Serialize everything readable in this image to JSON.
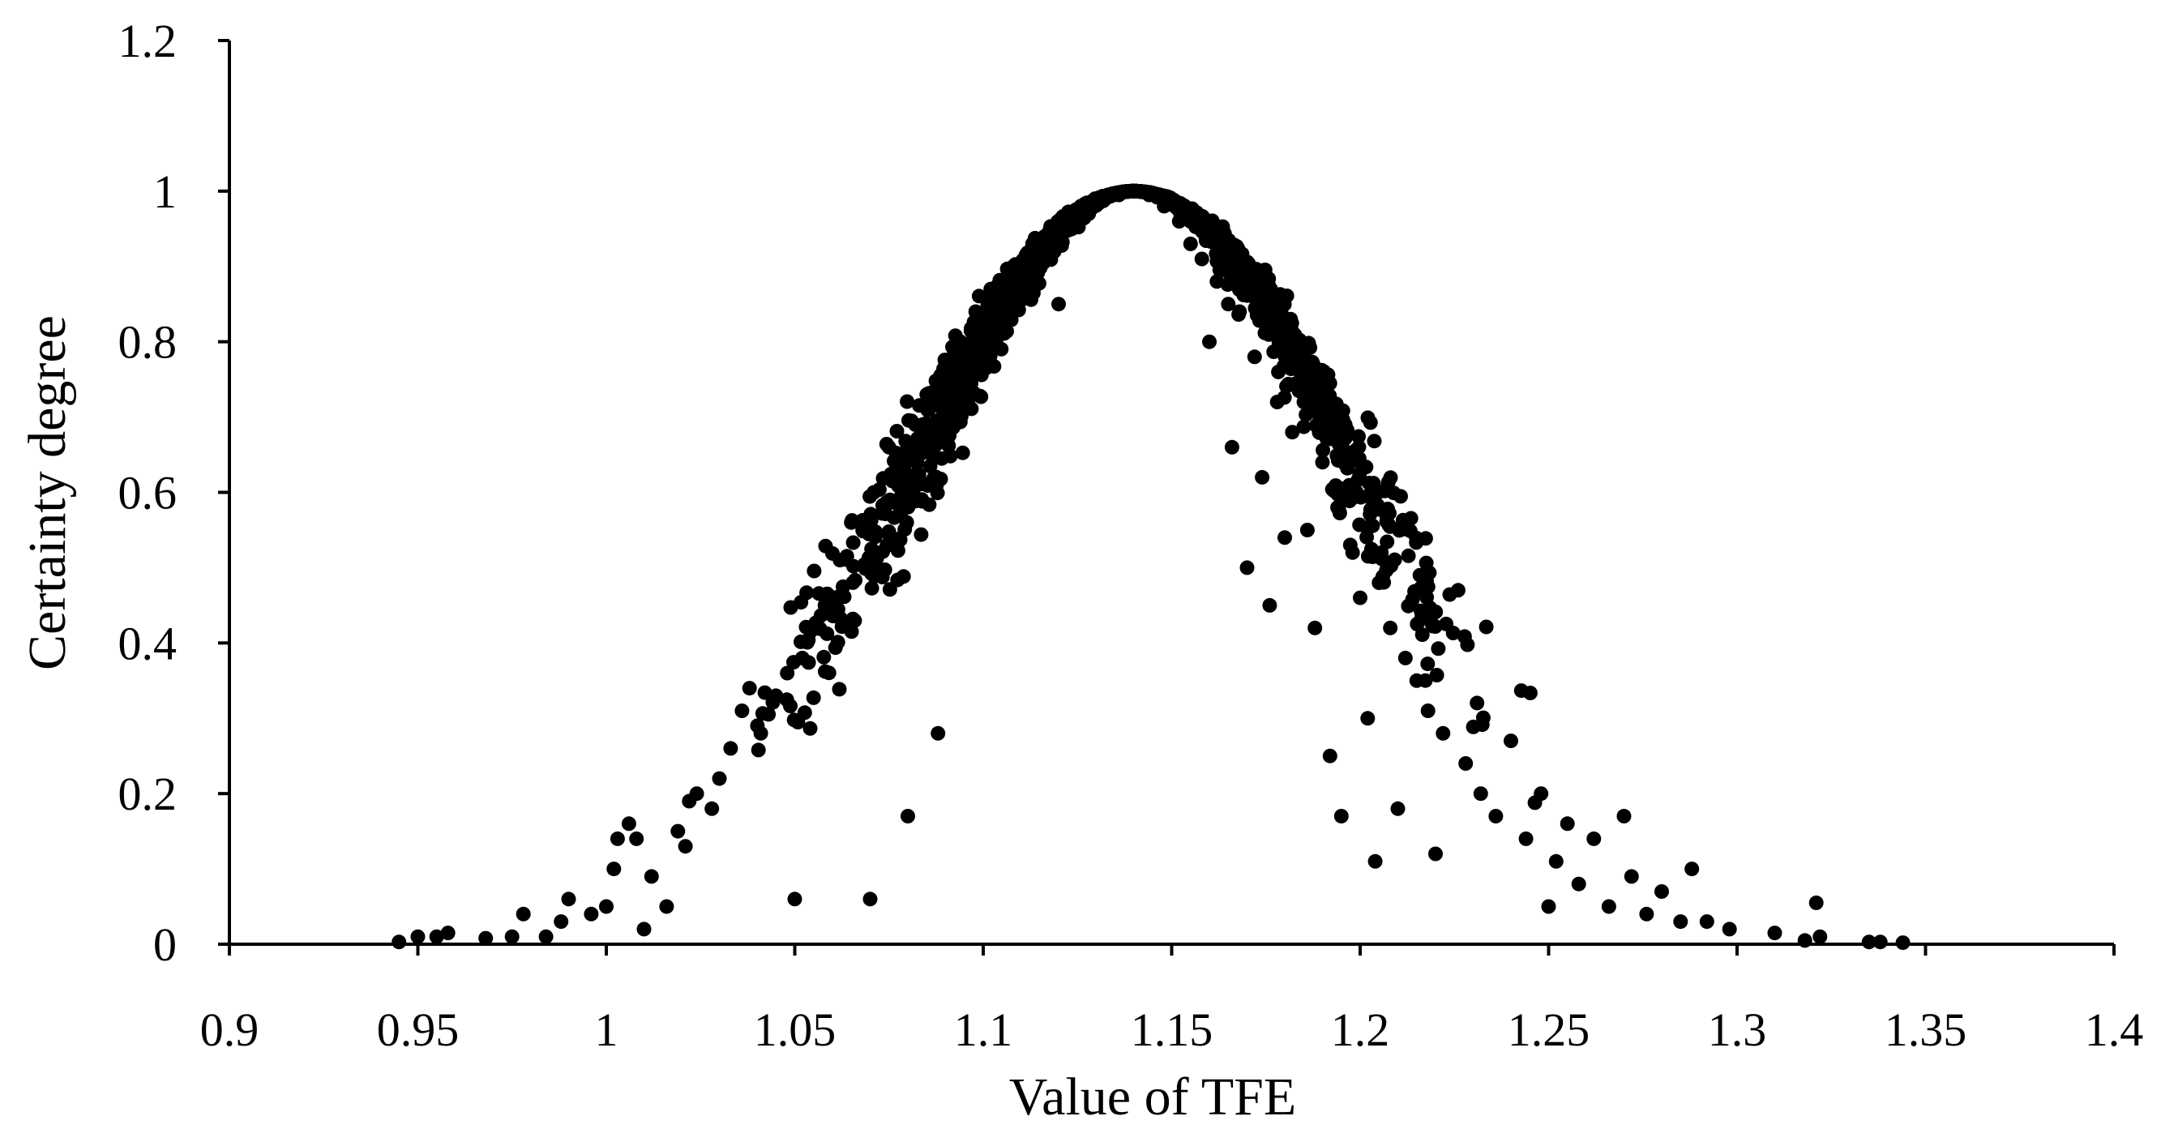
{
  "chart_data": {
    "type": "scatter",
    "title": "",
    "xlabel": "Value of TFE",
    "ylabel": "Certainty degree",
    "xlim": [
      0.9,
      1.4
    ],
    "ylim": [
      0,
      1.2
    ],
    "x_ticks": [
      0.9,
      0.95,
      1,
      1.05,
      1.1,
      1.15,
      1.2,
      1.25,
      1.3,
      1.35,
      1.4
    ],
    "x_tick_labels": [
      "0.9",
      "0.95",
      "1",
      "1.05",
      "1.1",
      "1.15",
      "1.2",
      "1.25",
      "1.3",
      "1.35",
      "1.4"
    ],
    "y_ticks": [
      0,
      0.2,
      0.4,
      0.6,
      0.8,
      1,
      1.2
    ],
    "y_tick_labels": [
      "0",
      "0.2",
      "0.4",
      "0.6",
      "0.8",
      "1",
      "1.2"
    ],
    "grid": false,
    "legend": "none",
    "marker_color": "#000000",
    "series": [
      {
        "points": [
          [
            0.945,
            0.003
          ],
          [
            0.95,
            0.01
          ],
          [
            0.955,
            0.01
          ],
          [
            0.958,
            0.015
          ],
          [
            0.968,
            0.008
          ],
          [
            0.975,
            0.01
          ],
          [
            0.978,
            0.04
          ],
          [
            0.984,
            0.01
          ],
          [
            0.988,
            0.03
          ],
          [
            0.99,
            0.06
          ],
          [
            0.996,
            0.04
          ],
          [
            1.0,
            0.05
          ],
          [
            1.002,
            0.1
          ],
          [
            1.003,
            0.14
          ],
          [
            1.006,
            0.16
          ],
          [
            1.008,
            0.14
          ],
          [
            1.01,
            0.02
          ],
          [
            1.012,
            0.09
          ],
          [
            1.016,
            0.05
          ],
          [
            1.019,
            0.15
          ],
          [
            1.021,
            0.13
          ],
          [
            1.022,
            0.19
          ],
          [
            1.024,
            0.2
          ],
          [
            1.028,
            0.18
          ],
          [
            1.03,
            0.22
          ],
          [
            1.033,
            0.26
          ],
          [
            1.036,
            0.31
          ],
          [
            1.038,
            0.34
          ],
          [
            1.041,
            0.28
          ],
          [
            1.045,
            0.33
          ],
          [
            1.048,
            0.36
          ],
          [
            1.05,
            0.06
          ],
          [
            1.052,
            0.38
          ],
          [
            1.055,
            0.42
          ],
          [
            1.058,
            0.45
          ],
          [
            1.06,
            0.46
          ],
          [
            1.062,
            0.51
          ],
          [
            1.065,
            0.56
          ],
          [
            1.068,
            0.55
          ],
          [
            1.07,
            0.06
          ],
          [
            1.071,
            0.6
          ],
          [
            1.075,
            0.66
          ],
          [
            1.078,
            0.62
          ],
          [
            1.08,
            0.17
          ],
          [
            1.082,
            0.69
          ],
          [
            1.085,
            0.73
          ],
          [
            1.088,
            0.28
          ],
          [
            1.09,
            0.77
          ],
          [
            1.094,
            0.8
          ],
          [
            1.098,
            0.84
          ],
          [
            1.102,
            0.87
          ],
          [
            1.104,
            0.82
          ],
          [
            1.108,
            0.9
          ],
          [
            1.112,
            0.88
          ],
          [
            1.115,
            0.92
          ],
          [
            1.118,
            0.94
          ],
          [
            1.12,
            0.85
          ],
          [
            1.124,
            0.96
          ],
          [
            1.128,
            0.97
          ],
          [
            1.132,
            0.99
          ],
          [
            1.136,
            0.995
          ],
          [
            1.14,
            1.0
          ],
          [
            1.144,
            0.995
          ],
          [
            1.148,
            0.98
          ],
          [
            1.152,
            0.96
          ],
          [
            1.155,
            0.93
          ],
          [
            1.158,
            0.91
          ],
          [
            1.16,
            0.8
          ],
          [
            1.162,
            0.88
          ],
          [
            1.165,
            0.85
          ],
          [
            1.166,
            0.66
          ],
          [
            1.168,
            0.84
          ],
          [
            1.17,
            0.5
          ],
          [
            1.172,
            0.78
          ],
          [
            1.174,
            0.62
          ],
          [
            1.176,
            0.45
          ],
          [
            1.178,
            0.72
          ],
          [
            1.18,
            0.54
          ],
          [
            1.182,
            0.68
          ],
          [
            1.184,
            0.76
          ],
          [
            1.186,
            0.55
          ],
          [
            1.188,
            0.42
          ],
          [
            1.19,
            0.64
          ],
          [
            1.192,
            0.25
          ],
          [
            1.194,
            0.58
          ],
          [
            1.195,
            0.17
          ],
          [
            1.198,
            0.52
          ],
          [
            1.2,
            0.46
          ],
          [
            1.202,
            0.3
          ],
          [
            1.204,
            0.11
          ],
          [
            1.205,
            0.48
          ],
          [
            1.208,
            0.42
          ],
          [
            1.21,
            0.18
          ],
          [
            1.212,
            0.38
          ],
          [
            1.215,
            0.35
          ],
          [
            1.218,
            0.31
          ],
          [
            1.22,
            0.12
          ],
          [
            1.222,
            0.28
          ],
          [
            1.226,
            0.47
          ],
          [
            1.228,
            0.24
          ],
          [
            1.232,
            0.2
          ],
          [
            1.236,
            0.17
          ],
          [
            1.24,
            0.27
          ],
          [
            1.244,
            0.14
          ],
          [
            1.248,
            0.2
          ],
          [
            1.25,
            0.05
          ],
          [
            1.252,
            0.11
          ],
          [
            1.255,
            0.16
          ],
          [
            1.258,
            0.08
          ],
          [
            1.262,
            0.14
          ],
          [
            1.266,
            0.05
          ],
          [
            1.27,
            0.17
          ],
          [
            1.272,
            0.09
          ],
          [
            1.276,
            0.04
          ],
          [
            1.28,
            0.07
          ],
          [
            1.285,
            0.03
          ],
          [
            1.288,
            0.1
          ],
          [
            1.292,
            0.03
          ],
          [
            1.298,
            0.02
          ],
          [
            1.31,
            0.015
          ],
          [
            1.318,
            0.005
          ],
          [
            1.321,
            0.055
          ],
          [
            1.322,
            0.01
          ],
          [
            1.335,
            0.003
          ],
          [
            1.338,
            0.003
          ],
          [
            1.344,
            0.002
          ]
        ]
      }
    ]
  }
}
